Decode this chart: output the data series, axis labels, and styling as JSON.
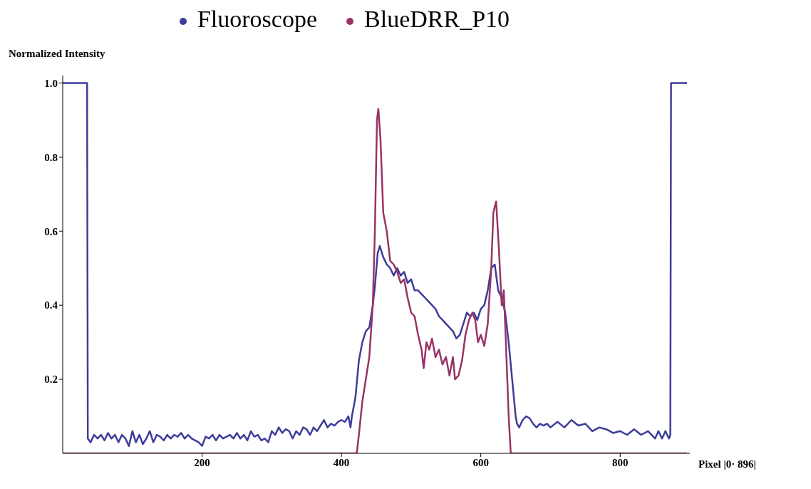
{
  "chart_data": {
    "type": "line",
    "xlabel": "Pixel |0· 896|",
    "ylabel": "Normalized Intensity",
    "xlim": [
      0,
      900
    ],
    "ylim": [
      0,
      1.02
    ],
    "xticks": [
      200,
      400,
      600,
      800
    ],
    "yticks": [
      0.2,
      0.4,
      0.6,
      0.8,
      {
        "value": 1,
        "label": "1.0"
      }
    ],
    "legend": "top",
    "grid": false,
    "line_style": "solid",
    "series": [
      {
        "name": "Fluoroscope",
        "color": "#3d3d9b",
        "x": [
          0,
          35,
          36,
          40,
          45,
          50,
          55,
          60,
          65,
          70,
          75,
          80,
          85,
          90,
          95,
          100,
          105,
          110,
          115,
          120,
          125,
          130,
          135,
          140,
          145,
          150,
          155,
          160,
          165,
          170,
          175,
          180,
          185,
          190,
          195,
          200,
          205,
          210,
          215,
          220,
          225,
          230,
          235,
          240,
          245,
          250,
          255,
          260,
          265,
          270,
          275,
          280,
          285,
          290,
          295,
          300,
          305,
          310,
          315,
          320,
          325,
          330,
          335,
          340,
          345,
          350,
          355,
          360,
          365,
          370,
          375,
          380,
          385,
          390,
          395,
          400,
          405,
          410,
          413,
          415,
          420,
          425,
          430,
          435,
          440,
          445,
          448,
          452,
          455,
          460,
          465,
          470,
          475,
          480,
          485,
          490,
          495,
          500,
          505,
          510,
          515,
          520,
          525,
          530,
          535,
          540,
          545,
          550,
          555,
          560,
          565,
          570,
          575,
          580,
          585,
          590,
          595,
          600,
          605,
          610,
          615,
          620,
          625,
          630,
          635,
          640,
          645,
          650,
          652,
          655,
          660,
          665,
          670,
          675,
          680,
          685,
          690,
          695,
          700,
          710,
          720,
          730,
          740,
          750,
          760,
          770,
          780,
          790,
          800,
          810,
          820,
          830,
          840,
          850,
          855,
          860,
          865,
          870,
          872,
          873,
          896
        ],
        "values": [
          1,
          1,
          0.04,
          0.03,
          0.05,
          0.04,
          0.05,
          0.035,
          0.055,
          0.04,
          0.05,
          0.03,
          0.05,
          0.04,
          0.02,
          0.06,
          0.03,
          0.05,
          0.025,
          0.04,
          0.06,
          0.03,
          0.05,
          0.045,
          0.035,
          0.05,
          0.04,
          0.05,
          0.045,
          0.055,
          0.04,
          0.05,
          0.04,
          0.035,
          0.03,
          0.02,
          0.045,
          0.04,
          0.05,
          0.035,
          0.05,
          0.04,
          0.045,
          0.05,
          0.04,
          0.055,
          0.04,
          0.05,
          0.035,
          0.06,
          0.045,
          0.05,
          0.035,
          0.04,
          0.03,
          0.06,
          0.05,
          0.07,
          0.055,
          0.065,
          0.06,
          0.04,
          0.06,
          0.05,
          0.07,
          0.065,
          0.05,
          0.07,
          0.06,
          0.075,
          0.09,
          0.07,
          0.08,
          0.075,
          0.085,
          0.09,
          0.085,
          0.1,
          0.07,
          0.1,
          0.15,
          0.25,
          0.3,
          0.33,
          0.34,
          0.4,
          0.45,
          0.54,
          0.56,
          0.53,
          0.51,
          0.5,
          0.48,
          0.5,
          0.48,
          0.49,
          0.46,
          0.47,
          0.44,
          0.44,
          0.43,
          0.42,
          0.41,
          0.4,
          0.39,
          0.37,
          0.36,
          0.35,
          0.34,
          0.33,
          0.31,
          0.32,
          0.35,
          0.38,
          0.37,
          0.38,
          0.36,
          0.39,
          0.4,
          0.44,
          0.5,
          0.51,
          0.44,
          0.42,
          0.38,
          0.3,
          0.2,
          0.1,
          0.08,
          0.07,
          0.09,
          0.1,
          0.095,
          0.08,
          0.07,
          0.08,
          0.075,
          0.08,
          0.07,
          0.085,
          0.07,
          0.09,
          0.075,
          0.08,
          0.06,
          0.07,
          0.065,
          0.055,
          0.06,
          0.05,
          0.065,
          0.05,
          0.06,
          0.04,
          0.06,
          0.04,
          0.06,
          0.04,
          0.05,
          1,
          1
        ]
      },
      {
        "name": "BlueDRR_P10",
        "color": "#993366",
        "x": [
          0,
          420,
          422,
          425,
          430,
          435,
          440,
          445,
          448,
          451,
          453,
          456,
          460,
          465,
          470,
          475,
          480,
          485,
          490,
          495,
          500,
          505,
          510,
          515,
          518,
          522,
          526,
          530,
          535,
          540,
          545,
          550,
          555,
          560,
          563,
          568,
          573,
          578,
          583,
          588,
          592,
          596,
          600,
          605,
          610,
          615,
          618,
          622,
          626,
          630,
          633,
          636,
          640,
          643,
          896
        ],
        "values": [
          0,
          0,
          0,
          0.05,
          0.14,
          0.2,
          0.26,
          0.4,
          0.6,
          0.9,
          0.93,
          0.85,
          0.65,
          0.6,
          0.52,
          0.51,
          0.49,
          0.46,
          0.47,
          0.42,
          0.38,
          0.37,
          0.32,
          0.28,
          0.23,
          0.3,
          0.28,
          0.31,
          0.26,
          0.28,
          0.24,
          0.26,
          0.21,
          0.26,
          0.2,
          0.21,
          0.25,
          0.32,
          0.36,
          0.38,
          0.36,
          0.3,
          0.32,
          0.29,
          0.35,
          0.5,
          0.65,
          0.68,
          0.55,
          0.4,
          0.44,
          0.3,
          0.1,
          0,
          0
        ]
      }
    ]
  }
}
